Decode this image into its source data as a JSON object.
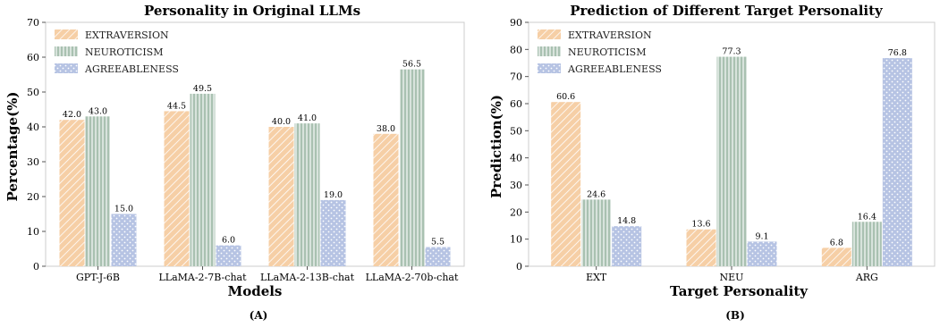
{
  "colors": {
    "extraversion": "#f6cfa6",
    "neuroticism": "#a9c1b1",
    "agreeableness": "#b6c3e3"
  },
  "chart_data": [
    {
      "type": "bar",
      "title": "Personality in Original LLMs",
      "xlabel": "Models",
      "ylabel": "Percentage(%)",
      "panel_label": "(A)",
      "ylim": [
        0,
        70
      ],
      "yticks": [
        0,
        10,
        20,
        30,
        40,
        50,
        60,
        70
      ],
      "grid": false,
      "legend_position": "top-left",
      "categories": [
        "GPT-J-6B",
        "LLaMA-2-7B-chat",
        "LLaMA-2-13B-chat",
        "LLaMA-2-70b-chat"
      ],
      "series": [
        {
          "name": "EXTRAVERSION",
          "pattern": "diagonal",
          "values": [
            42.0,
            44.5,
            40.0,
            38.0
          ],
          "labels": [
            "42.0",
            "44.5",
            "40.0",
            "38.0"
          ]
        },
        {
          "name": "NEUROTICISM",
          "pattern": "vertical",
          "values": [
            43.0,
            49.5,
            41.0,
            56.5
          ],
          "labels": [
            "43.0",
            "49.5",
            "41.0",
            "56.5"
          ]
        },
        {
          "name": "AGREEABLENESS",
          "pattern": "dots",
          "values": [
            15.0,
            6.0,
            19.0,
            5.5
          ],
          "labels": [
            "15.0",
            "6.0",
            "19.0",
            "5.5"
          ]
        }
      ]
    },
    {
      "type": "bar",
      "title": "Prediction of Different Target Personality",
      "xlabel": "Target Personality",
      "ylabel": "Prediction(%)",
      "panel_label": "(B)",
      "ylim": [
        0,
        90
      ],
      "yticks": [
        0,
        10,
        20,
        30,
        40,
        50,
        60,
        70,
        80,
        90
      ],
      "grid": false,
      "legend_position": "top-left",
      "categories": [
        "EXT",
        "NEU",
        "ARG"
      ],
      "series": [
        {
          "name": "EXTRAVERSION",
          "pattern": "diagonal",
          "values": [
            60.6,
            13.6,
            6.8
          ],
          "labels": [
            "60.6",
            "13.6",
            "6.8"
          ]
        },
        {
          "name": "NEUROTICISM",
          "pattern": "vertical",
          "values": [
            24.6,
            77.3,
            16.4
          ],
          "labels": [
            "24.6",
            "77.3",
            "16.4"
          ]
        },
        {
          "name": "AGREEABLENESS",
          "pattern": "dots",
          "values": [
            14.8,
            9.1,
            76.8
          ],
          "labels": [
            "14.8",
            "9.1",
            "76.8"
          ]
        }
      ]
    }
  ]
}
